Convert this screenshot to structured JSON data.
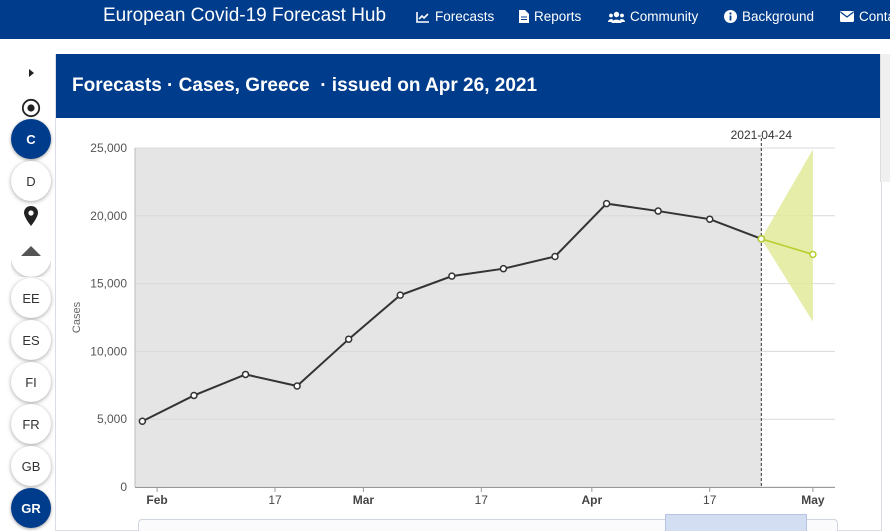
{
  "navbar": {
    "brand": "European Covid-19 Forecast Hub",
    "items": [
      {
        "label": "Forecasts",
        "icon": "chart-line-icon"
      },
      {
        "label": "Reports",
        "icon": "file-icon"
      },
      {
        "label": "Community",
        "icon": "users-icon"
      },
      {
        "label": "Background",
        "icon": "info-circle-icon"
      },
      {
        "label": "Conta",
        "icon": "envelope-icon"
      }
    ]
  },
  "rail": {
    "top_buttons": [
      {
        "label": "C",
        "active": true
      },
      {
        "label": "D",
        "active": false
      }
    ],
    "countries": [
      {
        "label": "EE",
        "active": false
      },
      {
        "label": "ES",
        "active": false
      },
      {
        "label": "FI",
        "active": false
      },
      {
        "label": "FR",
        "active": false
      },
      {
        "label": "GB",
        "active": false
      },
      {
        "label": "GR",
        "active": true
      }
    ]
  },
  "panel": {
    "title": "Forecasts · Cases, Greece  · issued on Apr 26, 2021"
  },
  "colors": {
    "navbar": "#003c8c",
    "plot_background": "#e5e5e5",
    "observed_line": "#333333",
    "forecast_line": "#b8cf2f",
    "forecast_band": "#e1ea9a"
  },
  "chart_data": {
    "type": "line",
    "title": "",
    "xlabel": "",
    "ylabel": "Cases",
    "ylim": [
      0,
      25000
    ],
    "y_ticks": [
      0,
      5000,
      10000,
      15000,
      20000,
      25000
    ],
    "y_tick_labels": [
      "0",
      "5,000",
      "10,000",
      "15,000",
      "20,000",
      "25,000"
    ],
    "x_ticks": [
      "2021-02-01",
      "2021-02-17",
      "2021-03-01",
      "2021-03-17",
      "2021-04-01",
      "2021-04-17",
      "2021-05-01"
    ],
    "x_tick_labels": [
      "Feb",
      "17",
      "Mar",
      "17",
      "Apr",
      "17",
      "May"
    ],
    "x_tick_bold": [
      true,
      false,
      true,
      false,
      true,
      false,
      true
    ],
    "xlim": [
      "2021-01-29",
      "2021-05-04"
    ],
    "shaded_until": "2021-04-24",
    "reference_line": {
      "x": "2021-04-24",
      "label": "2021-04-24"
    },
    "series": [
      {
        "x": [
          "2021-01-30",
          "2021-02-06",
          "2021-02-13",
          "2021-02-20",
          "2021-02-27",
          "2021-03-06",
          "2021-03-13",
          "2021-03-20",
          "2021-03-27",
          "2021-04-03",
          "2021-04-10",
          "2021-04-17",
          "2021-04-24"
        ],
        "values": [
          4850,
          6750,
          8300,
          7450,
          10900,
          14150,
          15550,
          16100,
          17000,
          20900,
          20350,
          19750,
          18300
        ]
      },
      {
        "x": [
          "2021-04-24",
          "2021-05-01"
        ],
        "values": [
          18300,
          17150
        ],
        "band_lower": [
          18300,
          12200
        ],
        "band_upper": [
          18300,
          24900
        ]
      }
    ]
  }
}
